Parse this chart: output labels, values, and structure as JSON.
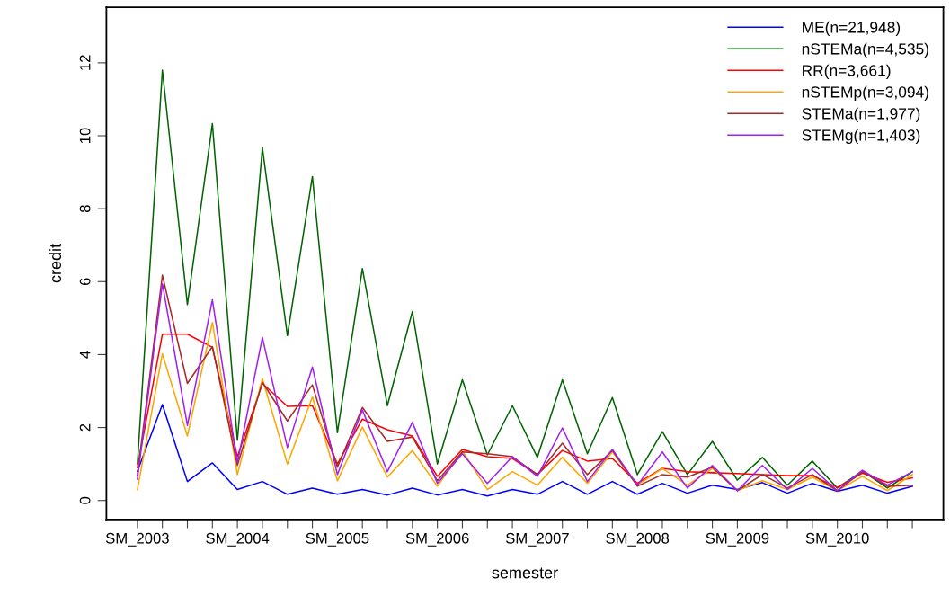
{
  "chart_data": {
    "type": "line",
    "xlabel": "semester",
    "ylabel": "credit",
    "categories": [
      "SM_2003",
      null,
      null,
      null,
      "SM_2004",
      null,
      null,
      null,
      "SM_2005",
      null,
      null,
      null,
      "SM_2006",
      null,
      null,
      null,
      "SM_2007",
      null,
      null,
      null,
      "SM_2008",
      null,
      null,
      null,
      "SM_2009",
      null,
      null,
      null,
      "SM_2010",
      null,
      null,
      null
    ],
    "ylim": [
      -0.52,
      13.52
    ],
    "yticks": [
      0,
      2,
      4,
      6,
      8,
      10,
      12
    ],
    "grid": false,
    "legend": "top right",
    "marker": "none",
    "line_style": "solid",
    "series": [
      {
        "name": "ME(n=21,948)",
        "color": "#0000ff",
        "values": [
          0.8,
          2.63,
          0.52,
          1.03,
          0.3,
          0.52,
          0.17,
          0.34,
          0.17,
          0.3,
          0.15,
          0.34,
          0.15,
          0.3,
          0.12,
          0.3,
          0.17,
          0.52,
          0.17,
          0.52,
          0.17,
          0.47,
          0.2,
          0.42,
          0.3,
          0.49,
          0.2,
          0.47,
          0.25,
          0.42,
          0.2,
          0.39
        ]
      },
      {
        "name": "nSTEMa(n=4,535)",
        "color": "#006400",
        "values": [
          1.0,
          11.8,
          5.37,
          10.33,
          1.65,
          9.67,
          4.52,
          8.88,
          1.86,
          6.36,
          2.6,
          5.18,
          1.0,
          3.31,
          1.25,
          2.6,
          1.18,
          3.31,
          1.28,
          2.82,
          0.71,
          1.89,
          0.71,
          1.62,
          0.56,
          1.18,
          0.42,
          1.08,
          0.34,
          0.81,
          0.34,
          0.79
        ]
      },
      {
        "name": "RR(n=3,661)",
        "color": "#ff0000",
        "values": [
          0.9,
          4.56,
          4.56,
          4.2,
          1.2,
          3.21,
          2.58,
          2.6,
          1.0,
          2.23,
          1.94,
          1.77,
          0.66,
          1.4,
          1.2,
          1.15,
          0.71,
          1.37,
          1.08,
          1.15,
          0.47,
          0.88,
          0.79,
          0.76,
          0.74,
          0.71,
          0.68,
          0.68,
          0.36,
          0.75,
          0.5,
          0.62
        ]
      },
      {
        "name": "nSTEMp(n=3,094)",
        "color": "#ffa500",
        "values": [
          0.3,
          4.02,
          1.77,
          4.88,
          0.71,
          3.34,
          1.0,
          2.84,
          0.54,
          2.01,
          0.64,
          1.37,
          0.39,
          1.35,
          0.3,
          0.79,
          0.42,
          1.18,
          0.47,
          1.33,
          0.42,
          0.88,
          0.42,
          0.88,
          0.27,
          0.54,
          0.3,
          0.64,
          0.27,
          0.66,
          0.27,
          0.71
        ]
      },
      {
        "name": "STEMa(n=1,977)",
        "color": "#a52a2a",
        "values": [
          0.7,
          6.18,
          3.21,
          4.22,
          0.96,
          3.24,
          2.18,
          3.17,
          0.91,
          2.55,
          1.62,
          1.74,
          0.54,
          1.33,
          1.28,
          1.2,
          0.71,
          1.57,
          0.71,
          1.37,
          0.39,
          0.71,
          0.64,
          0.91,
          0.27,
          0.71,
          0.34,
          0.71,
          0.27,
          0.79,
          0.39,
          0.42
        ]
      },
      {
        "name": "STEMg(n=1,403)",
        "color": "#a020f0",
        "values": [
          0.59,
          5.94,
          2.06,
          5.5,
          1.03,
          4.47,
          1.45,
          3.66,
          0.71,
          2.48,
          0.79,
          2.14,
          0.47,
          1.28,
          0.47,
          1.2,
          0.66,
          1.99,
          0.52,
          1.4,
          0.42,
          1.33,
          0.34,
          0.96,
          0.27,
          0.96,
          0.3,
          0.88,
          0.27,
          0.83,
          0.42,
          0.79
        ]
      }
    ]
  }
}
